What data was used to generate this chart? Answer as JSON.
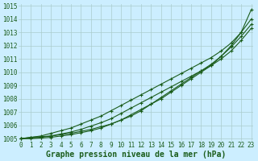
{
  "title": "Graphe pression niveau de la mer (hPa)",
  "bg_color": "#cceeff",
  "grid_color": "#aacccc",
  "line_color": "#1a5c1a",
  "x_min": 0,
  "x_max": 23,
  "y_min": 1005,
  "y_max": 1015,
  "x_ticks": [
    0,
    1,
    2,
    3,
    4,
    5,
    6,
    7,
    8,
    9,
    10,
    11,
    12,
    13,
    14,
    15,
    16,
    17,
    18,
    19,
    20,
    21,
    22,
    23
  ],
  "y_ticks": [
    1005,
    1006,
    1007,
    1008,
    1009,
    1010,
    1011,
    1012,
    1013,
    1014,
    1015
  ],
  "series": [
    [
      1005.0,
      1005.1,
      1005.15,
      1005.2,
      1005.3,
      1005.4,
      1005.55,
      1005.7,
      1005.9,
      1006.1,
      1006.4,
      1006.7,
      1007.1,
      1007.6,
      1008.0,
      1008.5,
      1009.0,
      1009.5,
      1010.0,
      1010.5,
      1011.2,
      1012.0,
      1013.0,
      1014.7
    ],
    [
      1005.0,
      1005.1,
      1005.2,
      1005.4,
      1005.6,
      1005.8,
      1006.1,
      1006.4,
      1006.7,
      1007.1,
      1007.5,
      1007.9,
      1008.3,
      1008.7,
      1009.1,
      1009.5,
      1009.9,
      1010.3,
      1010.7,
      1011.1,
      1011.6,
      1012.2,
      1013.0,
      1014.0
    ],
    [
      1005.0,
      1005.05,
      1005.1,
      1005.2,
      1005.35,
      1005.5,
      1005.7,
      1005.95,
      1006.2,
      1006.5,
      1006.9,
      1007.3,
      1007.7,
      1008.1,
      1008.5,
      1008.9,
      1009.3,
      1009.7,
      1010.1,
      1010.5,
      1011.0,
      1011.6,
      1012.4,
      1013.3
    ],
    [
      1005.0,
      1005.0,
      1005.05,
      1005.1,
      1005.2,
      1005.3,
      1005.45,
      1005.6,
      1005.8,
      1006.1,
      1006.4,
      1006.8,
      1007.2,
      1007.6,
      1008.1,
      1008.6,
      1009.1,
      1009.6,
      1010.1,
      1010.6,
      1011.2,
      1011.9,
      1012.7,
      1013.6
    ]
  ],
  "marker": "+",
  "markersize": 3.5,
  "linewidth": 0.8,
  "tick_fontsize": 5.5,
  "label_fontsize": 7.0,
  "label_fontweight": "bold"
}
